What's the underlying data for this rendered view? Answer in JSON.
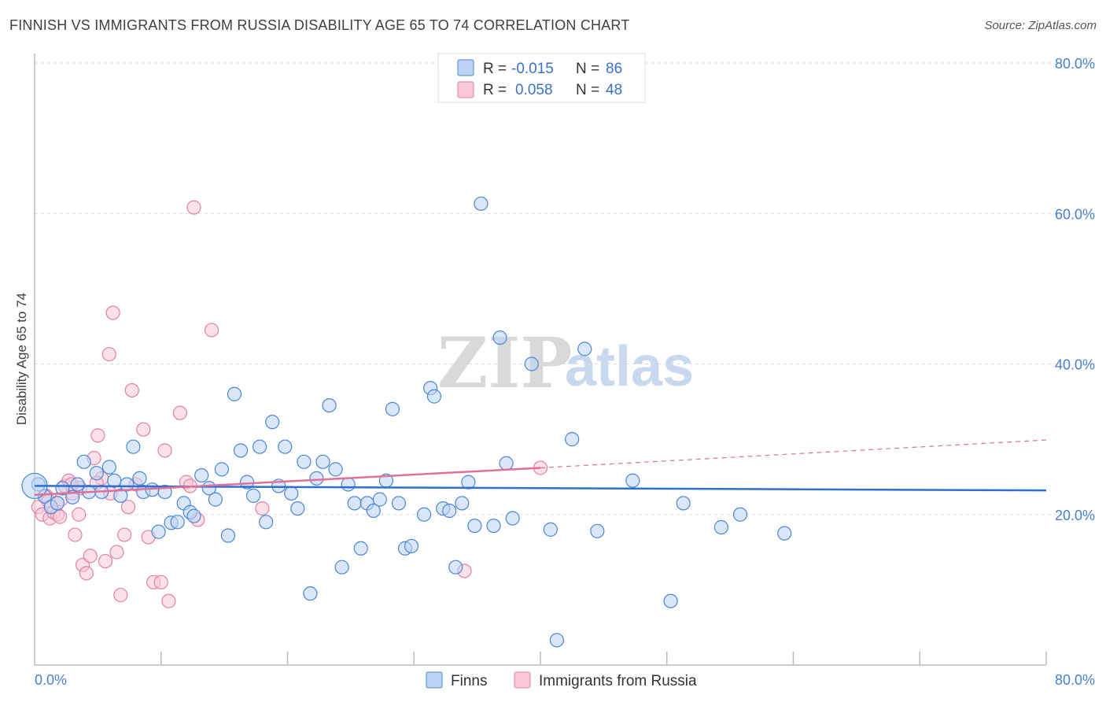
{
  "title": "FINNISH VS IMMIGRANTS FROM RUSSIA DISABILITY AGE 65 TO 74 CORRELATION CHART",
  "source": "Source: ZipAtlas.com",
  "watermark": {
    "part1": "ZIP",
    "part2": "atlas"
  },
  "stats_box": {
    "rows": [
      {
        "r_label": "R =",
        "r_value": "-0.015",
        "n_label": "N =",
        "n_value": "86",
        "color": "#a9c6f0"
      },
      {
        "r_label": "R =",
        "r_value": "0.058",
        "n_label": "N =",
        "n_value": "48",
        "color": "#f6b8cb"
      }
    ]
  },
  "legend": {
    "items": [
      {
        "label": "Finns",
        "color": "#a9c6f0"
      },
      {
        "label": "Immigrants from Russia",
        "color": "#f6b8cb"
      }
    ]
  },
  "chart_data": {
    "type": "scatter",
    "title": "FINNISH VS IMMIGRANTS FROM RUSSIA DISABILITY AGE 65 TO 74 CORRELATION CHART",
    "xlabel": "",
    "ylabel": "Disability Age 65 to 74",
    "xlim": [
      0,
      80
    ],
    "ylim": [
      0,
      80
    ],
    "x_tick_labels": [
      "0.0%",
      "80.0%"
    ],
    "y_ticks": [
      20,
      40,
      60,
      80
    ],
    "y_tick_labels": [
      "20.0%",
      "40.0%",
      "60.0%",
      "80.0%"
    ],
    "colors": {
      "finns": "#4a86d8",
      "finns_fill": "#bcd3f3",
      "russia": "#e680a5",
      "russia_fill": "#f8c8d7",
      "finns_line": "#2f6fcf",
      "russia_line": "#e07099",
      "grid": "#dddddd"
    },
    "series": [
      {
        "name": "Finns",
        "trend": {
          "x": [
            0,
            80
          ],
          "y": [
            23.8,
            23.2
          ]
        },
        "points": [
          [
            0.3,
            24.0
          ],
          [
            0.8,
            22.4
          ],
          [
            1.3,
            21.0
          ],
          [
            1.8,
            21.5
          ],
          [
            2.2,
            23.5
          ],
          [
            3.0,
            22.3
          ],
          [
            3.4,
            24.0
          ],
          [
            3.9,
            27.0
          ],
          [
            4.3,
            23.0
          ],
          [
            4.9,
            25.5
          ],
          [
            5.3,
            23.0
          ],
          [
            5.9,
            26.3
          ],
          [
            6.3,
            24.5
          ],
          [
            6.8,
            22.5
          ],
          [
            7.3,
            24.0
          ],
          [
            7.8,
            29.0
          ],
          [
            8.3,
            24.8
          ],
          [
            8.6,
            23.0
          ],
          [
            9.3,
            23.3
          ],
          [
            9.8,
            17.7
          ],
          [
            10.3,
            23.0
          ],
          [
            10.8,
            18.9
          ],
          [
            11.3,
            19.0
          ],
          [
            11.8,
            21.5
          ],
          [
            12.3,
            20.3
          ],
          [
            12.6,
            19.8
          ],
          [
            13.2,
            25.2
          ],
          [
            13.8,
            23.5
          ],
          [
            14.3,
            22.0
          ],
          [
            14.8,
            26.0
          ],
          [
            15.3,
            17.2
          ],
          [
            15.8,
            36.0
          ],
          [
            16.3,
            28.5
          ],
          [
            16.8,
            24.3
          ],
          [
            17.3,
            22.5
          ],
          [
            17.8,
            29.0
          ],
          [
            18.3,
            19.0
          ],
          [
            18.8,
            32.3
          ],
          [
            19.3,
            23.8
          ],
          [
            19.8,
            29.0
          ],
          [
            20.3,
            22.8
          ],
          [
            20.8,
            20.8
          ],
          [
            21.3,
            27.0
          ],
          [
            21.8,
            9.5
          ],
          [
            22.3,
            24.8
          ],
          [
            22.8,
            27.0
          ],
          [
            23.3,
            34.5
          ],
          [
            23.8,
            26.0
          ],
          [
            24.3,
            13.0
          ],
          [
            24.8,
            24.0
          ],
          [
            25.3,
            21.5
          ],
          [
            25.8,
            15.5
          ],
          [
            26.3,
            21.5
          ],
          [
            26.8,
            20.5
          ],
          [
            27.3,
            22.0
          ],
          [
            27.8,
            24.5
          ],
          [
            28.3,
            34.0
          ],
          [
            28.8,
            21.5
          ],
          [
            29.3,
            15.5
          ],
          [
            29.8,
            15.8
          ],
          [
            30.8,
            20.0
          ],
          [
            31.3,
            36.8
          ],
          [
            31.6,
            35.7
          ],
          [
            32.3,
            20.8
          ],
          [
            32.8,
            20.5
          ],
          [
            33.3,
            13.0
          ],
          [
            33.8,
            21.5
          ],
          [
            34.3,
            24.3
          ],
          [
            34.8,
            18.5
          ],
          [
            35.3,
            61.3
          ],
          [
            36.3,
            18.5
          ],
          [
            36.8,
            43.5
          ],
          [
            37.3,
            26.8
          ],
          [
            37.8,
            19.5
          ],
          [
            39.3,
            40.0
          ],
          [
            40.8,
            18.0
          ],
          [
            41.3,
            3.3
          ],
          [
            42.5,
            30.0
          ],
          [
            43.5,
            42.0
          ],
          [
            44.5,
            17.8
          ],
          [
            47.3,
            24.5
          ],
          [
            50.3,
            8.5
          ],
          [
            51.3,
            21.5
          ],
          [
            54.3,
            18.3
          ],
          [
            55.8,
            20.0
          ],
          [
            59.3,
            17.5
          ]
        ]
      },
      {
        "name": "Immigrants from Russia",
        "trend": {
          "x": [
            0,
            40
          ],
          "y": [
            22.6,
            26.2
          ]
        },
        "trend_dashed": {
          "x": [
            40,
            80
          ],
          "y": [
            26.2,
            29.9
          ]
        },
        "points": [
          [
            0.3,
            21.0
          ],
          [
            0.6,
            20.0
          ],
          [
            0.9,
            22.5
          ],
          [
            1.2,
            19.5
          ],
          [
            1.5,
            20.3
          ],
          [
            1.8,
            20.0
          ],
          [
            2.1,
            22.0
          ],
          [
            2.4,
            23.8
          ],
          [
            2.7,
            24.5
          ],
          [
            3.0,
            22.8
          ],
          [
            3.2,
            17.3
          ],
          [
            3.5,
            20.0
          ],
          [
            3.8,
            13.3
          ],
          [
            4.1,
            12.2
          ],
          [
            4.4,
            14.5
          ],
          [
            4.7,
            27.5
          ],
          [
            5.0,
            30.5
          ],
          [
            5.3,
            24.8
          ],
          [
            5.6,
            13.8
          ],
          [
            5.9,
            41.3
          ],
          [
            6.2,
            46.8
          ],
          [
            6.5,
            15.0
          ],
          [
            6.8,
            9.3
          ],
          [
            7.1,
            17.3
          ],
          [
            7.4,
            21.0
          ],
          [
            7.7,
            36.5
          ],
          [
            8.0,
            24.0
          ],
          [
            8.6,
            31.3
          ],
          [
            9.0,
            17.0
          ],
          [
            9.4,
            11.0
          ],
          [
            10.0,
            11.0
          ],
          [
            10.3,
            28.5
          ],
          [
            10.6,
            8.5
          ],
          [
            11.5,
            33.5
          ],
          [
            12.0,
            24.3
          ],
          [
            12.3,
            23.8
          ],
          [
            12.6,
            60.8
          ],
          [
            12.9,
            19.3
          ],
          [
            14.0,
            44.5
          ],
          [
            18.0,
            20.8
          ],
          [
            2.0,
            19.7
          ],
          [
            3.6,
            23.5
          ],
          [
            4.9,
            24.2
          ],
          [
            6.0,
            22.8
          ],
          [
            1.1,
            21.8
          ],
          [
            2.9,
            24.0
          ],
          [
            34.0,
            12.5
          ],
          [
            40.0,
            26.2
          ]
        ]
      }
    ]
  }
}
